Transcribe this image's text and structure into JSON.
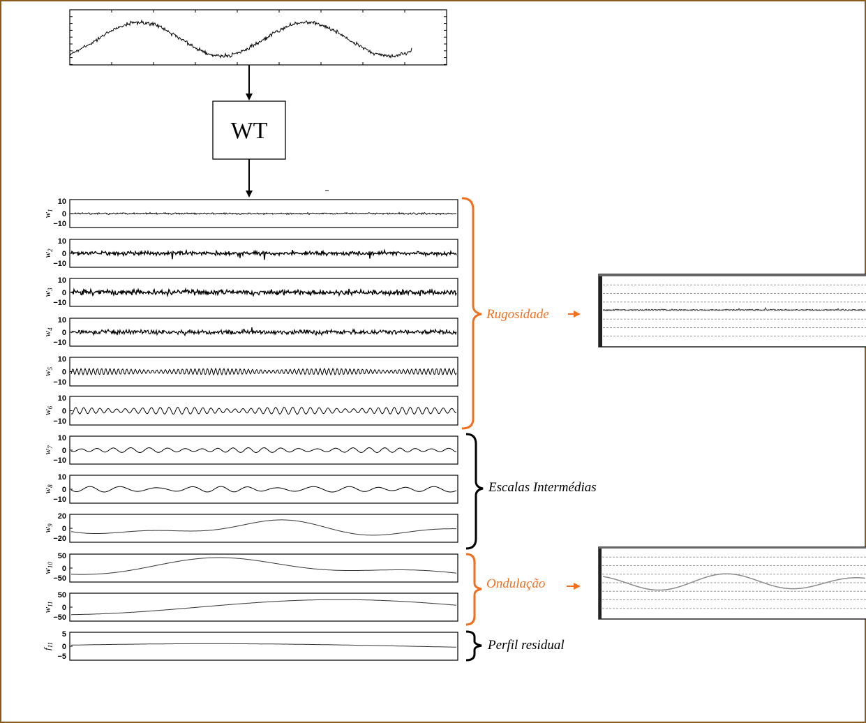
{
  "transform_label": "WT",
  "colors": {
    "border": "#8b5a1e",
    "orange": "#f07020",
    "black": "#000000",
    "grid": "#9a9a9a",
    "panel_line": "#444444",
    "smooth_line": "#8a8a8a"
  },
  "panels": [
    {
      "label": "w",
      "sub": "1",
      "ticks": [
        "10",
        "0",
        "−10"
      ]
    },
    {
      "label": "w",
      "sub": "2",
      "ticks": [
        "10",
        "0",
        "−10"
      ]
    },
    {
      "label": "w",
      "sub": "3",
      "ticks": [
        "10",
        "0",
        "−10"
      ]
    },
    {
      "label": "w",
      "sub": "4",
      "ticks": [
        "10",
        "0",
        "−10"
      ]
    },
    {
      "label": "w",
      "sub": "5",
      "ticks": [
        "10",
        "0",
        "−10"
      ]
    },
    {
      "label": "w",
      "sub": "6",
      "ticks": [
        "10",
        "0",
        "−10"
      ]
    },
    {
      "label": "w",
      "sub": "7",
      "ticks": [
        "10",
        "0",
        "−10"
      ]
    },
    {
      "label": "w",
      "sub": "8",
      "ticks": [
        "10",
        "0",
        "−10"
      ]
    },
    {
      "label": "w",
      "sub": "9",
      "ticks": [
        "20",
        "0",
        "−20"
      ]
    },
    {
      "label": "w",
      "sub": "10",
      "ticks": [
        "50",
        "0",
        "−50"
      ]
    },
    {
      "label": "w",
      "sub": "11",
      "ticks": [
        "50",
        "0",
        "−50"
      ]
    },
    {
      "label": "f",
      "sub": "11",
      "ticks": [
        "5",
        "0",
        "−5"
      ]
    }
  ],
  "groups": [
    {
      "label": "Rugosidade",
      "color": "orange",
      "arrow": true
    },
    {
      "label": "Escalas Intermédias",
      "color": "black",
      "arrow": false
    },
    {
      "label": "Ondulação",
      "color": "orange",
      "arrow": true
    },
    {
      "label": "Perfil residual",
      "color": "black",
      "arrow": false
    }
  ]
}
